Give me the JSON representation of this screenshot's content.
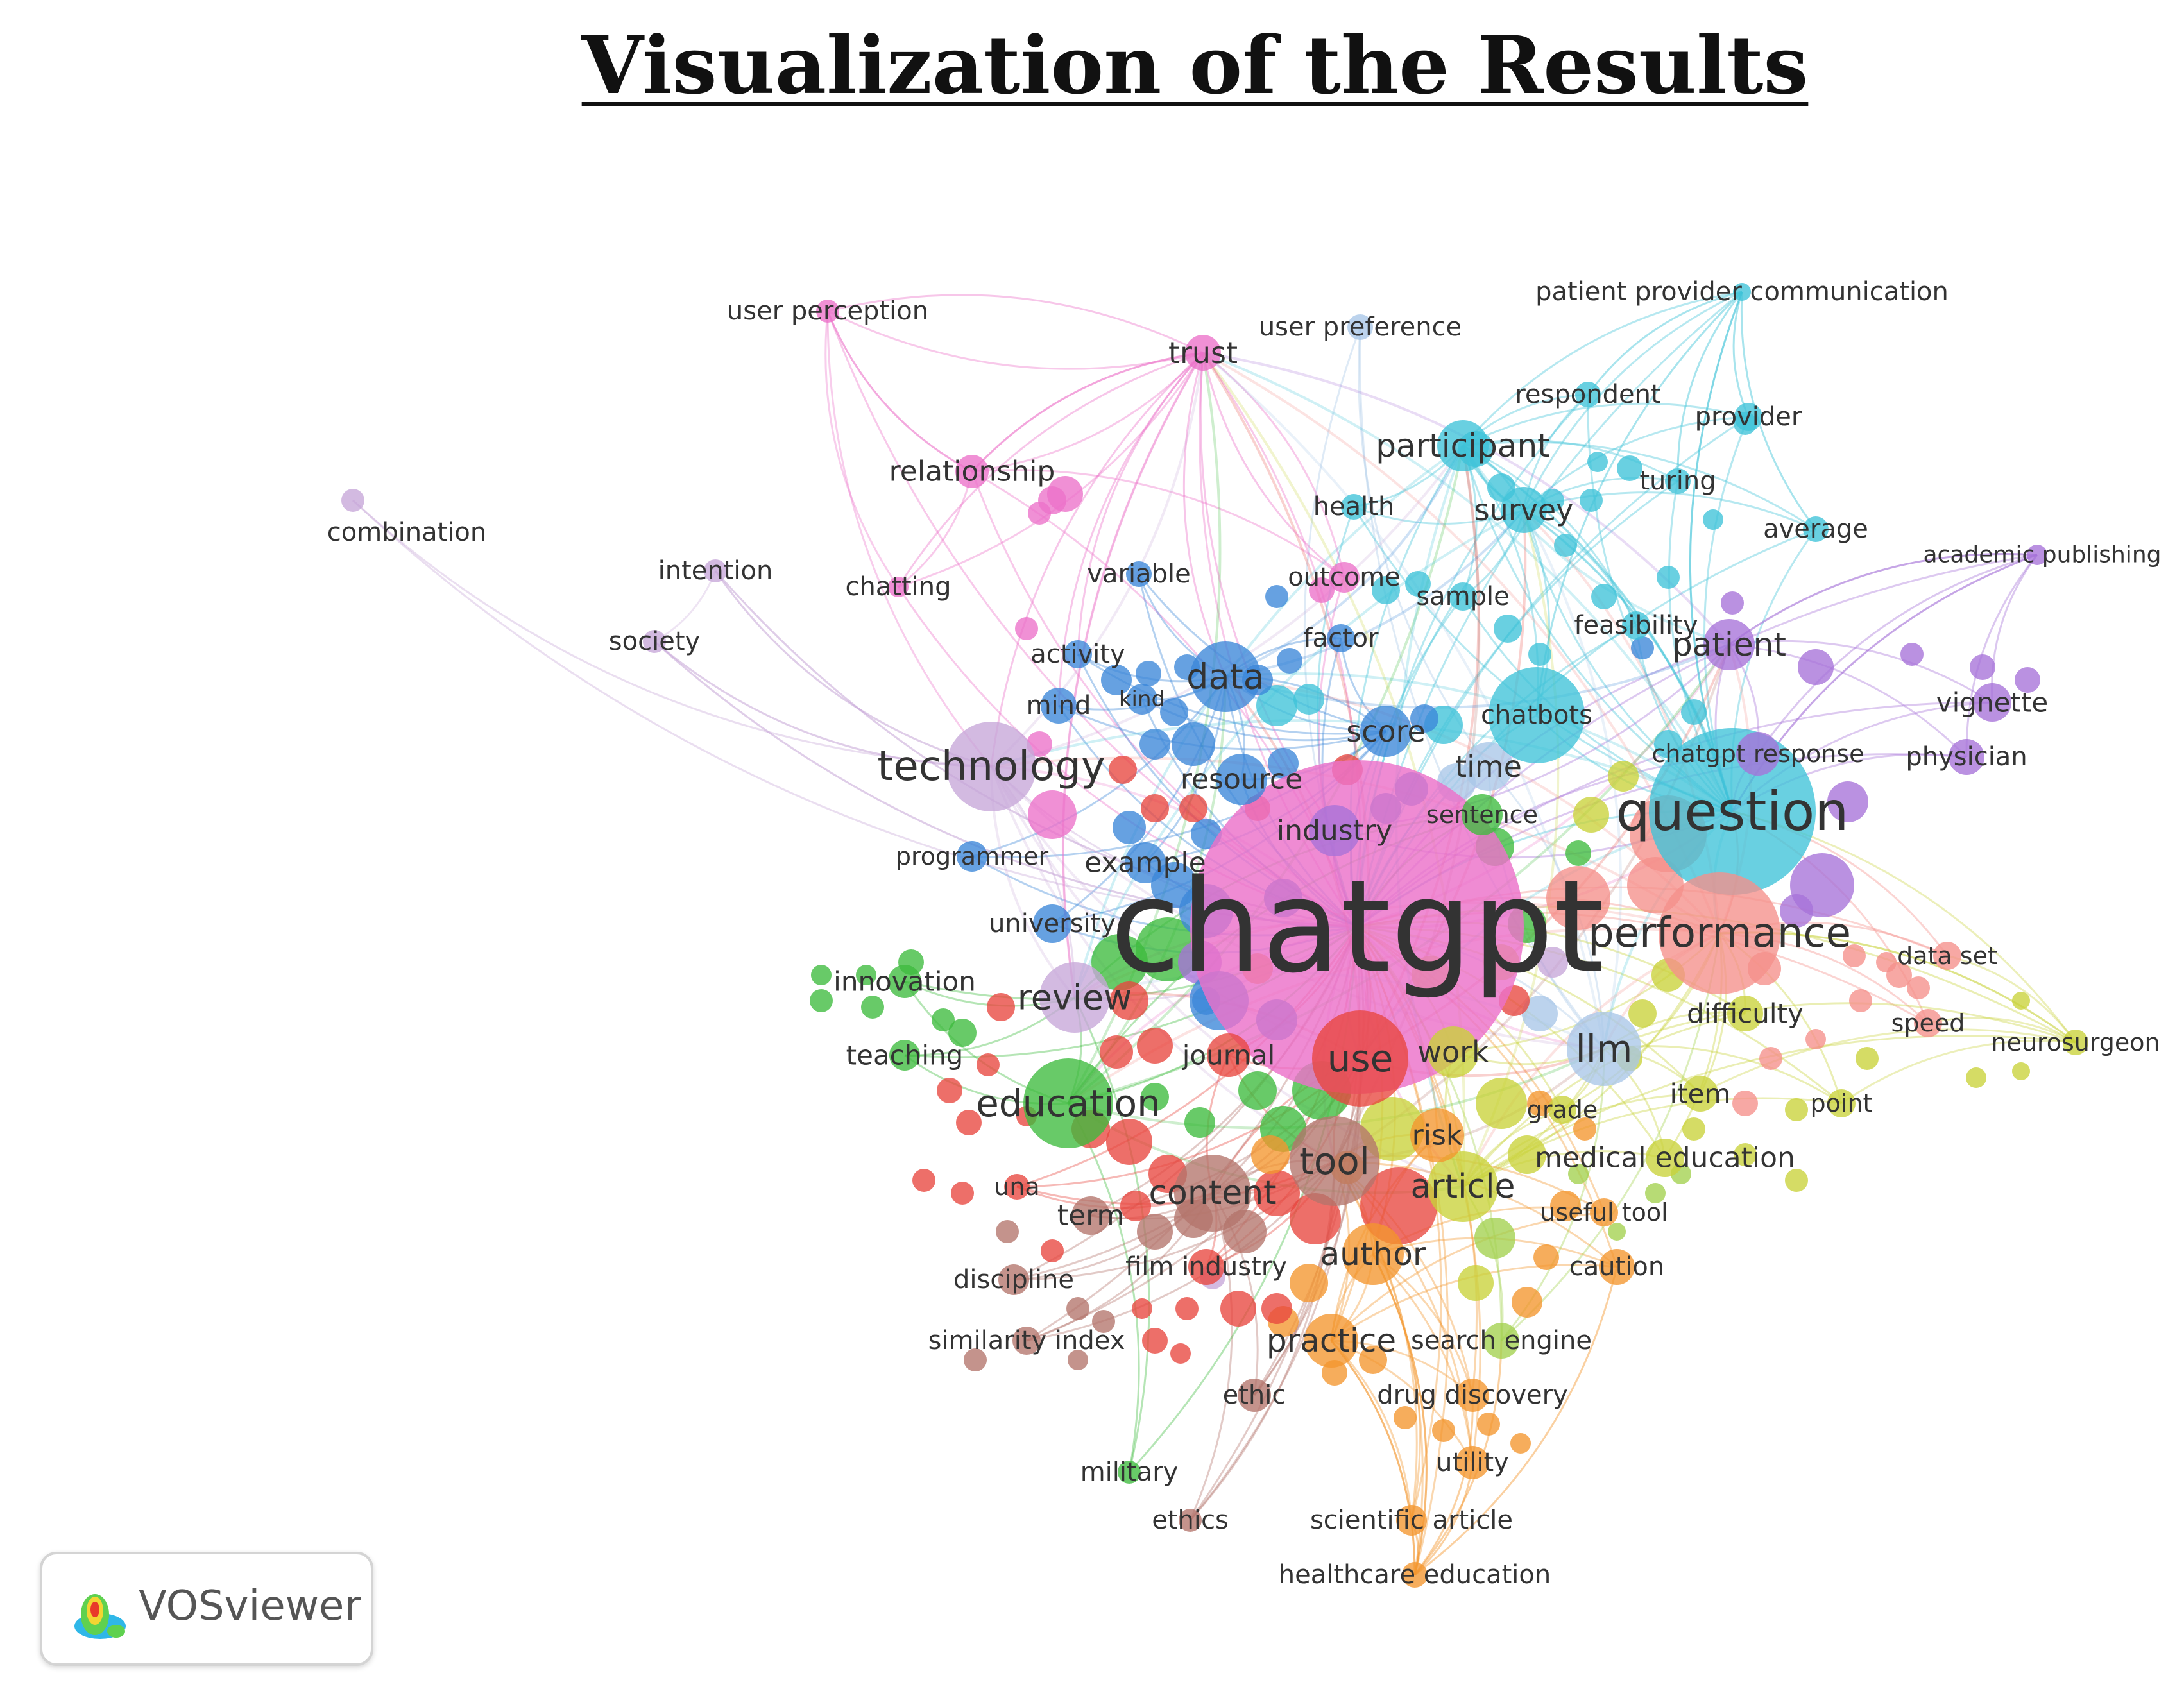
{
  "title": "Visualization of the Results",
  "software_label": "VOSviewer",
  "software_logo_icon": "vosviewer-density-icon",
  "clusters": {
    "red": "#e8473f",
    "green": "#3dbb3d",
    "blue": "#3b86d8",
    "yellow": "#c9d23a",
    "purple": "#a672d8",
    "cyan": "#3fc3d8",
    "orange": "#f3962e",
    "brown": "#b3746b",
    "pink": "#ec71c9",
    "salmon": "#f58f8a",
    "lightblue": "#a9c7e8",
    "lavender": "#c7a7d8",
    "lime": "#a3d14e"
  },
  "nodes": [
    {
      "label": "chatgpt",
      "cluster": "pink",
      "size": 10
    },
    {
      "label": "question",
      "cluster": "cyan",
      "size": 6
    },
    {
      "label": "performance",
      "cluster": "salmon",
      "size": 5
    },
    {
      "label": "technology",
      "cluster": "lavender",
      "size": 5
    },
    {
      "label": "education",
      "cluster": "green",
      "size": 5
    },
    {
      "label": "use",
      "cluster": "red",
      "size": 5
    },
    {
      "label": "tool",
      "cluster": "brown",
      "size": 5
    },
    {
      "label": "llm",
      "cluster": "lightblue",
      "size": 5
    },
    {
      "label": "review",
      "cluster": "lavender",
      "size": 4
    },
    {
      "label": "data",
      "cluster": "blue",
      "size": 4
    },
    {
      "label": "participant",
      "cluster": "cyan",
      "size": 4
    },
    {
      "label": "patient",
      "cluster": "purple",
      "size": 4
    },
    {
      "label": "article",
      "cluster": "yellow",
      "size": 4
    },
    {
      "label": "content",
      "cluster": "brown",
      "size": 4
    },
    {
      "label": "author",
      "cluster": "orange",
      "size": 4
    },
    {
      "label": "practice",
      "cluster": "orange",
      "size": 4
    },
    {
      "label": "survey",
      "cluster": "cyan",
      "size": 3
    },
    {
      "label": "score",
      "cluster": "blue",
      "size": 3
    },
    {
      "label": "time",
      "cluster": "lightblue",
      "size": 3
    },
    {
      "label": "work",
      "cluster": "yellow",
      "size": 3
    },
    {
      "label": "medical education",
      "cluster": "yellow",
      "size": 3
    },
    {
      "label": "resource",
      "cluster": "blue",
      "size": 3
    },
    {
      "label": "example",
      "cluster": "blue",
      "size": 3
    },
    {
      "label": "industry",
      "cluster": "purple",
      "size": 3
    },
    {
      "label": "trust",
      "cluster": "pink",
      "size": 3
    },
    {
      "label": "relationship",
      "cluster": "pink",
      "size": 3
    },
    {
      "label": "risk",
      "cluster": "orange",
      "size": 3
    },
    {
      "label": "term",
      "cluster": "brown",
      "size": 3
    },
    {
      "label": "journal",
      "cluster": "red",
      "size": 3
    },
    {
      "label": "innovation",
      "cluster": "green",
      "size": 3
    },
    {
      "label": "teaching",
      "cluster": "green",
      "size": 3
    },
    {
      "label": "university",
      "cluster": "blue",
      "size": 3
    },
    {
      "label": "programmer",
      "cluster": "blue",
      "size": 3
    },
    {
      "label": "difficulty",
      "cluster": "yellow",
      "size": 3
    },
    {
      "label": "item",
      "cluster": "yellow",
      "size": 3
    },
    {
      "label": "grade",
      "cluster": "yellow",
      "size": 2
    },
    {
      "label": "chatbots",
      "cluster": "cyan",
      "size": 3
    },
    {
      "label": "chatgpt response",
      "cluster": "purple",
      "size": 2
    },
    {
      "label": "sentence",
      "cluster": "green",
      "size": 2
    },
    {
      "label": "vignette",
      "cluster": "purple",
      "size": 3
    },
    {
      "label": "physician",
      "cluster": "purple",
      "size": 3
    },
    {
      "label": "data set",
      "cluster": "salmon",
      "size": 2
    },
    {
      "label": "speed",
      "cluster": "salmon",
      "size": 2
    },
    {
      "label": "neurosurgeon",
      "cluster": "yellow",
      "size": 2
    },
    {
      "label": "point",
      "cluster": "yellow",
      "size": 2
    },
    {
      "label": "useful tool",
      "cluster": "orange",
      "size": 2
    },
    {
      "label": "caution",
      "cluster": "orange",
      "size": 2
    },
    {
      "label": "search engine",
      "cluster": "lime",
      "size": 2
    },
    {
      "label": "drug discovery",
      "cluster": "orange",
      "size": 2
    },
    {
      "label": "utility",
      "cluster": "orange",
      "size": 2
    },
    {
      "label": "scientific article",
      "cluster": "orange",
      "size": 2
    },
    {
      "label": "healthcare education",
      "cluster": "orange",
      "size": 2
    },
    {
      "label": "ethic",
      "cluster": "brown",
      "size": 2
    },
    {
      "label": "ethics",
      "cluster": "brown",
      "size": 2
    },
    {
      "label": "military",
      "cluster": "green",
      "size": 2
    },
    {
      "label": "similarity index",
      "cluster": "brown",
      "size": 2
    },
    {
      "label": "discipline",
      "cluster": "brown",
      "size": 2
    },
    {
      "label": "film industry",
      "cluster": "red",
      "size": 2
    },
    {
      "label": "una",
      "cluster": "red",
      "size": 2
    },
    {
      "label": "user perception",
      "cluster": "pink",
      "size": 2
    },
    {
      "label": "user preference",
      "cluster": "lightblue",
      "size": 2
    },
    {
      "label": "patient provider communication",
      "cluster": "cyan",
      "size": 2
    },
    {
      "label": "respondent",
      "cluster": "cyan",
      "size": 2
    },
    {
      "label": "provider",
      "cluster": "cyan",
      "size": 2
    },
    {
      "label": "turing",
      "cluster": "cyan",
      "size": 2
    },
    {
      "label": "average",
      "cluster": "cyan",
      "size": 2
    },
    {
      "label": "health",
      "cluster": "cyan",
      "size": 2
    },
    {
      "label": "sample",
      "cluster": "cyan",
      "size": 2
    },
    {
      "label": "feasibility",
      "cluster": "cyan",
      "size": 2
    },
    {
      "label": "outcome",
      "cluster": "pink",
      "size": 2
    },
    {
      "label": "variable",
      "cluster": "blue",
      "size": 2
    },
    {
      "label": "factor",
      "cluster": "blue",
      "size": 2
    },
    {
      "label": "activity",
      "cluster": "blue",
      "size": 2
    },
    {
      "label": "mind",
      "cluster": "blue",
      "size": 2
    },
    {
      "label": "kind",
      "cluster": "blue",
      "size": 2
    },
    {
      "label": "chatting",
      "cluster": "pink",
      "size": 2
    },
    {
      "label": "intention",
      "cluster": "lavender",
      "size": 2
    },
    {
      "label": "society",
      "cluster": "lavender",
      "size": 2
    },
    {
      "label": "combination",
      "cluster": "lavender",
      "size": 2
    },
    {
      "label": "academic publishing",
      "cluster": "purple",
      "size": 2
    }
  ]
}
